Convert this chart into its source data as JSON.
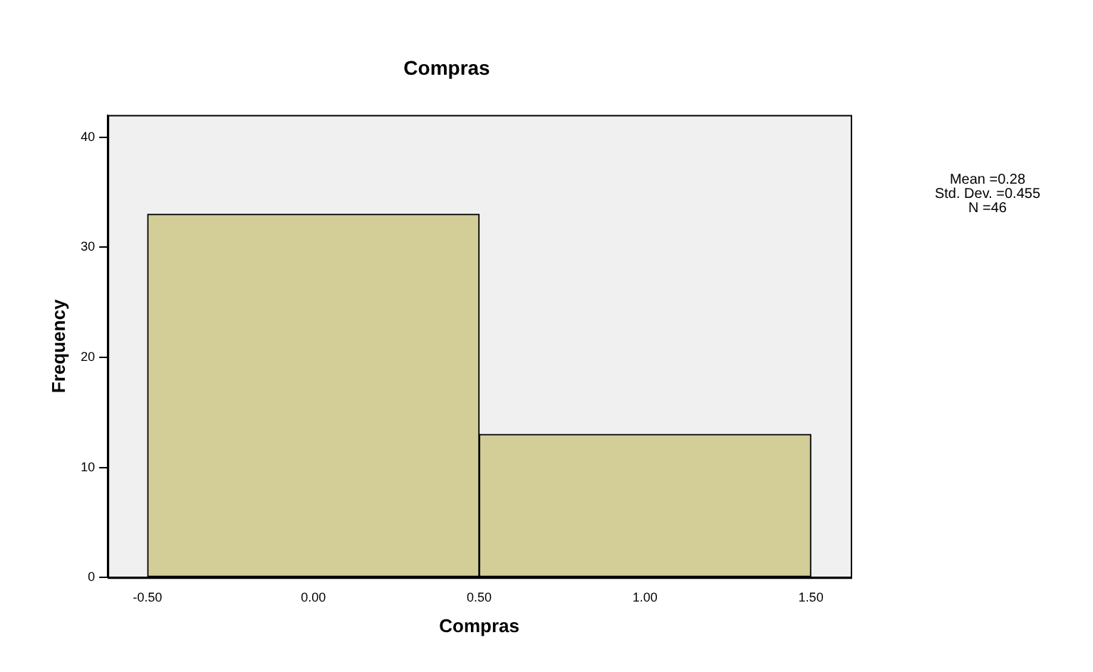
{
  "chart_data": {
    "type": "histogram",
    "title": "Compras",
    "xlabel": "Compras",
    "ylabel": "Frequency",
    "bins": [
      -0.5,
      0.5,
      1.5
    ],
    "values": [
      33,
      13
    ],
    "color": "#d3ce98",
    "xlim": [
      -0.62,
      1.62
    ],
    "xticks": [
      {
        "value": -0.5,
        "label": "-0.50"
      },
      {
        "value": 0,
        "label": "0.00"
      },
      {
        "value": 0.5,
        "label": "0.50"
      },
      {
        "value": 1,
        "label": "1.00"
      },
      {
        "value": 1.5,
        "label": "1.50"
      }
    ],
    "ylim": [
      0,
      42
    ],
    "yticks": [
      0,
      10,
      20,
      30,
      40
    ],
    "grid": false,
    "legend": false,
    "annotations": [
      "Mean =0.28",
      "Std. Dev. =0.455",
      "N =46"
    ]
  }
}
